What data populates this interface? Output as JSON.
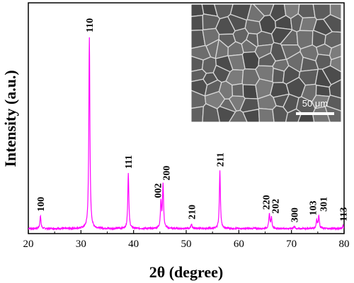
{
  "chart_data": {
    "type": "line",
    "xlabel": "2θ (degree)",
    "ylabel": "Intensity (a.u.)",
    "xlim": [
      20,
      80
    ],
    "ylim": [
      0,
      100
    ],
    "xticks": [
      20,
      30,
      40,
      50,
      60,
      70,
      80
    ],
    "grid": false,
    "series": [
      {
        "color": "#ff00ff",
        "baseline": 1.5,
        "peaks": [
          {
            "x": 22.3,
            "y": 8,
            "label": "100"
          },
          {
            "x": 31.6,
            "y": 100,
            "label": "110"
          },
          {
            "x": 39.0,
            "y": 30,
            "label": "111"
          },
          {
            "x": 45.2,
            "y": 15,
            "label": "002"
          },
          {
            "x": 45.6,
            "y": 24,
            "label": "200"
          },
          {
            "x": 51.0,
            "y": 4,
            "label": "210"
          },
          {
            "x": 56.4,
            "y": 31,
            "label": "211"
          },
          {
            "x": 65.8,
            "y": 9,
            "label": "220"
          },
          {
            "x": 66.2,
            "y": 7,
            "label": "202"
          },
          {
            "x": 70.5,
            "y": 2.5,
            "label": "300"
          },
          {
            "x": 74.8,
            "y": 6,
            "label": "103"
          },
          {
            "x": 75.2,
            "y": 8,
            "label": "301"
          },
          {
            "x": 79.8,
            "y": 3,
            "label": "113"
          }
        ]
      }
    ],
    "inset": {
      "kind": "SEM micrograph",
      "scale_bar": "50 μm"
    }
  }
}
